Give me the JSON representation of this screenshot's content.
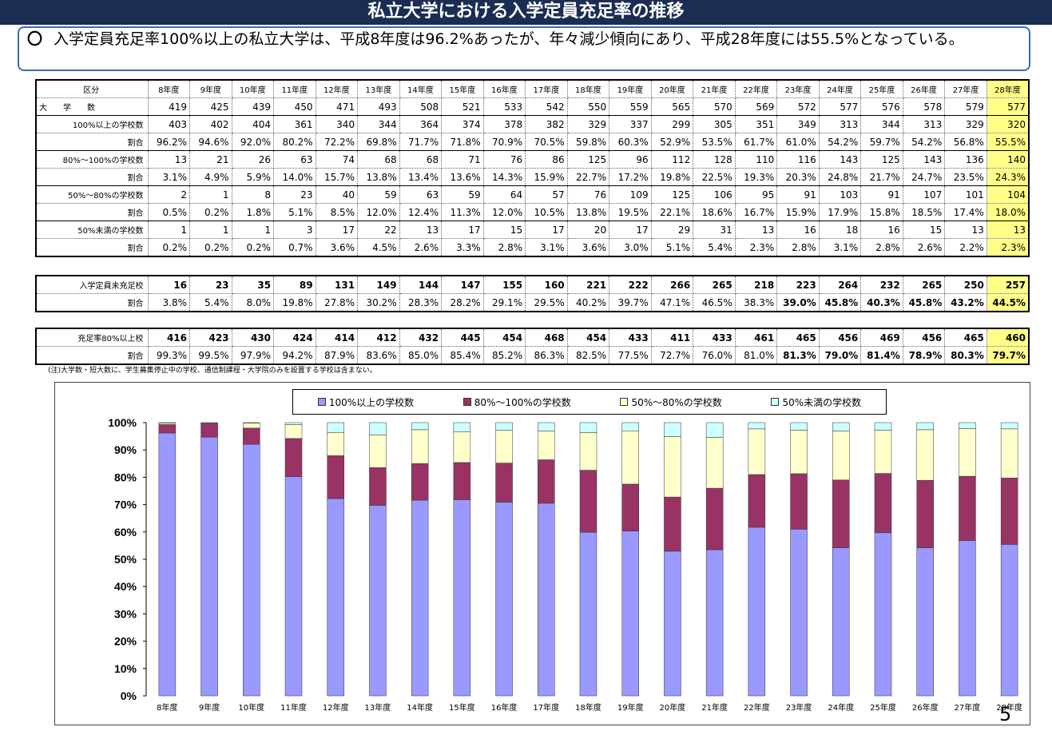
{
  "header": {
    "title": "私立大学における入学定員充足率の推移"
  },
  "summary": {
    "mark": "〇",
    "text": "入学定員充足率100%以上の私立大学は、平成8年度は96.2%あったが、年々減少傾向にあり、平成28年度には55.5%となっている。"
  },
  "table": {
    "corner": "区分",
    "years": [
      "8年度",
      "9年度",
      "10年度",
      "11年度",
      "12年度",
      "13年度",
      "14年度",
      "15年度",
      "16年度",
      "17年度",
      "18年度",
      "19年度",
      "20年度",
      "21年度",
      "22年度",
      "23年度",
      "24年度",
      "25年度",
      "26年度",
      "27年度",
      "28年度"
    ],
    "rows": [
      {
        "label": "大　　学　　数",
        "values": [
          "419",
          "425",
          "439",
          "450",
          "471",
          "493",
          "508",
          "521",
          "533",
          "542",
          "550",
          "559",
          "565",
          "570",
          "569",
          "572",
          "577",
          "576",
          "578",
          "579",
          "577"
        ]
      },
      {
        "label": "100%以上の学校数",
        "values": [
          "403",
          "402",
          "404",
          "361",
          "340",
          "344",
          "364",
          "374",
          "378",
          "382",
          "329",
          "337",
          "299",
          "305",
          "351",
          "349",
          "313",
          "344",
          "313",
          "329",
          "320"
        ]
      },
      {
        "label": "割合",
        "values": [
          "96.2%",
          "94.6%",
          "92.0%",
          "80.2%",
          "72.2%",
          "69.8%",
          "71.7%",
          "71.8%",
          "70.9%",
          "70.5%",
          "59.8%",
          "60.3%",
          "52.9%",
          "53.5%",
          "61.7%",
          "61.0%",
          "54.2%",
          "59.7%",
          "54.2%",
          "56.8%",
          "55.5%"
        ]
      },
      {
        "label": "80%～100%の学校数",
        "values": [
          "13",
          "21",
          "26",
          "63",
          "74",
          "68",
          "68",
          "71",
          "76",
          "86",
          "125",
          "96",
          "112",
          "128",
          "110",
          "116",
          "143",
          "125",
          "143",
          "136",
          "140"
        ]
      },
      {
        "label": "割合",
        "values": [
          "3.1%",
          "4.9%",
          "5.9%",
          "14.0%",
          "15.7%",
          "13.8%",
          "13.4%",
          "13.6%",
          "14.3%",
          "15.9%",
          "22.7%",
          "17.2%",
          "19.8%",
          "22.5%",
          "19.3%",
          "20.3%",
          "24.8%",
          "21.7%",
          "24.7%",
          "23.5%",
          "24.3%"
        ]
      },
      {
        "label": "50%～80%の学校数",
        "values": [
          "2",
          "1",
          "8",
          "23",
          "40",
          "59",
          "63",
          "59",
          "64",
          "57",
          "76",
          "109",
          "125",
          "106",
          "95",
          "91",
          "103",
          "91",
          "107",
          "101",
          "104"
        ]
      },
      {
        "label": "割合",
        "values": [
          "0.5%",
          "0.2%",
          "1.8%",
          "5.1%",
          "8.5%",
          "12.0%",
          "12.4%",
          "11.3%",
          "12.0%",
          "10.5%",
          "13.8%",
          "19.5%",
          "22.1%",
          "18.6%",
          "16.7%",
          "15.9%",
          "17.9%",
          "15.8%",
          "18.5%",
          "17.4%",
          "18.0%"
        ]
      },
      {
        "label": "50%未満の学校数",
        "values": [
          "1",
          "1",
          "1",
          "3",
          "17",
          "22",
          "13",
          "17",
          "15",
          "17",
          "20",
          "17",
          "29",
          "31",
          "13",
          "16",
          "18",
          "16",
          "15",
          "13",
          "13"
        ]
      },
      {
        "label": "割合",
        "values": [
          "0.2%",
          "0.2%",
          "0.2%",
          "0.7%",
          "3.6%",
          "4.5%",
          "2.6%",
          "3.3%",
          "2.8%",
          "3.1%",
          "3.6%",
          "3.0%",
          "5.1%",
          "5.4%",
          "2.3%",
          "2.8%",
          "3.1%",
          "2.8%",
          "2.6%",
          "2.2%",
          "2.3%"
        ]
      }
    ]
  },
  "table2": {
    "rows": [
      {
        "label": "入学定員未充足校",
        "values": [
          "16",
          "23",
          "35",
          "89",
          "131",
          "149",
          "144",
          "147",
          "155",
          "160",
          "221",
          "222",
          "266",
          "265",
          "218",
          "223",
          "264",
          "232",
          "265",
          "250",
          "257"
        ]
      },
      {
        "label": "割合",
        "values": [
          "3.8%",
          "5.4%",
          "8.0%",
          "19.8%",
          "27.8%",
          "30.2%",
          "28.3%",
          "28.2%",
          "29.1%",
          "29.5%",
          "40.2%",
          "39.7%",
          "47.1%",
          "46.5%",
          "38.3%",
          "39.0%",
          "45.8%",
          "40.3%",
          "45.8%",
          "43.2%",
          "44.5%"
        ]
      }
    ]
  },
  "table3": {
    "rows": [
      {
        "label": "充足率80%以上校",
        "values": [
          "416",
          "423",
          "430",
          "424",
          "414",
          "412",
          "432",
          "445",
          "454",
          "468",
          "454",
          "433",
          "411",
          "433",
          "461",
          "465",
          "456",
          "469",
          "456",
          "465",
          "460"
        ]
      },
      {
        "label": "割合",
        "values": [
          "99.3%",
          "99.5%",
          "97.9%",
          "94.2%",
          "87.9%",
          "83.6%",
          "85.0%",
          "85.4%",
          "85.2%",
          "86.3%",
          "82.5%",
          "77.5%",
          "72.7%",
          "76.0%",
          "81.0%",
          "81.3%",
          "79.0%",
          "81.4%",
          "78.9%",
          "80.3%",
          "79.7%"
        ]
      }
    ]
  },
  "note": "(注)大学数・短大数に、学生募集停止中の学校、通信制課程・大学院のみを設置する学校は含まない。",
  "page_number": "5",
  "colors": {
    "s1": "#9999ff",
    "s2": "#993366",
    "s3": "#ffffcc",
    "s4": "#ccffff",
    "header": "#1a2d52",
    "highlight": "#ffff88"
  },
  "chart_data": {
    "type": "bar",
    "stacked": true,
    "categories": [
      "8年度",
      "9年度",
      "10年度",
      "11年度",
      "12年度",
      "13年度",
      "14年度",
      "15年度",
      "16年度",
      "17年度",
      "18年度",
      "19年度",
      "20年度",
      "21年度",
      "22年度",
      "23年度",
      "24年度",
      "25年度",
      "26年度",
      "27年度",
      "28年度"
    ],
    "series": [
      {
        "name": "100%以上の学校数",
        "values": [
          96.2,
          94.6,
          92.0,
          80.2,
          72.2,
          69.8,
          71.7,
          71.8,
          70.9,
          70.5,
          59.8,
          60.3,
          52.9,
          53.5,
          61.7,
          61.0,
          54.2,
          59.7,
          54.2,
          56.8,
          55.5
        ]
      },
      {
        "name": "80%～100%の学校数",
        "values": [
          3.1,
          4.9,
          5.9,
          14.0,
          15.7,
          13.8,
          13.4,
          13.6,
          14.3,
          15.9,
          22.7,
          17.2,
          19.8,
          22.5,
          19.3,
          20.3,
          24.8,
          21.7,
          24.7,
          23.5,
          24.3
        ]
      },
      {
        "name": "50%～80%の学校数",
        "values": [
          0.5,
          0.2,
          1.8,
          5.1,
          8.5,
          12.0,
          12.4,
          11.3,
          12.0,
          10.5,
          13.8,
          19.5,
          22.1,
          18.6,
          16.7,
          15.9,
          17.9,
          15.8,
          18.5,
          17.4,
          18.0
        ]
      },
      {
        "name": "50%未満の学校数",
        "values": [
          0.2,
          0.2,
          0.2,
          0.7,
          3.6,
          4.5,
          2.6,
          3.3,
          2.8,
          3.1,
          3.6,
          3.0,
          5.1,
          5.4,
          2.3,
          2.8,
          3.1,
          2.8,
          2.6,
          2.2,
          2.3
        ]
      }
    ],
    "yticks": [
      "0%",
      "10%",
      "20%",
      "30%",
      "40%",
      "50%",
      "60%",
      "70%",
      "80%",
      "90%",
      "100%"
    ],
    "ylim": [
      0,
      100
    ],
    "legend": "top"
  }
}
